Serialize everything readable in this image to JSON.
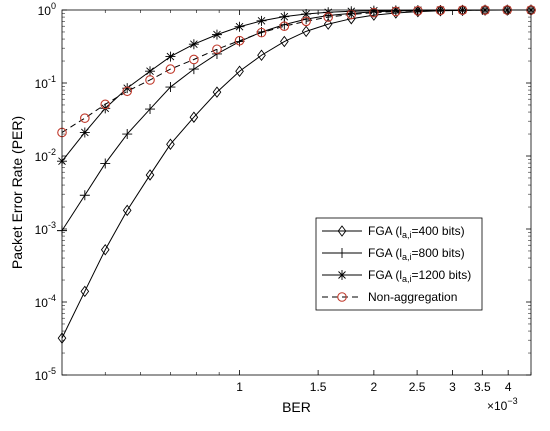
{
  "chart_data": {
    "type": "line",
    "xlabel": "BER",
    "ylabel": "Packet Error Rate (PER)",
    "x_scale": "log",
    "y_scale": "log",
    "xlim": [
      0.0004,
      0.0045
    ],
    "ylim": [
      1e-05,
      1
    ],
    "x_exponent_label": "×10",
    "x_exponent_value": "−3",
    "x_ticks": [
      0.001,
      0.0015,
      0.002,
      0.0025,
      0.003,
      0.0035,
      0.004
    ],
    "x_tick_labels": [
      "1",
      "1.5",
      "2",
      "2.5",
      "3",
      "3.5",
      "4"
    ],
    "y_ticks": [
      1e-05,
      0.0001,
      0.001,
      0.01,
      0.1,
      1
    ],
    "y_tick_labels": [
      {
        "base": "10",
        "exp": "-5"
      },
      {
        "base": "10",
        "exp": "-4"
      },
      {
        "base": "10",
        "exp": "-3"
      },
      {
        "base": "10",
        "exp": "-2"
      },
      {
        "base": "10",
        "exp": "-1"
      },
      {
        "base": "10",
        "exp": "0"
      }
    ],
    "grid": false,
    "legend_position": "lower-right",
    "series": [
      {
        "name_main": "FGA (l",
        "name_sub": "a,i",
        "name_tail": "=400 bits)",
        "marker": "diamond",
        "line": "solid",
        "color": "#000000",
        "x": [
          0.0004,
          0.00045,
          0.0005,
          0.00056,
          0.00063,
          0.0007,
          0.00079,
          0.00089,
          0.001,
          0.00112,
          0.00126,
          0.00141,
          0.00158,
          0.00178,
          0.002,
          0.00224,
          0.00251,
          0.00282,
          0.00316,
          0.00355,
          0.00398,
          0.0045
        ],
        "y": [
          3.2e-05,
          0.00014,
          0.00052,
          0.0018,
          0.0055,
          0.0145,
          0.034,
          0.075,
          0.145,
          0.24,
          0.37,
          0.51,
          0.64,
          0.76,
          0.85,
          0.91,
          0.95,
          0.975,
          0.99,
          0.995,
          0.998,
          0.999
        ]
      },
      {
        "name_main": "FGA (l",
        "name_sub": "a,i",
        "name_tail": "=800 bits)",
        "marker": "plus",
        "line": "solid",
        "color": "#000000",
        "x": [
          0.0004,
          0.00045,
          0.0005,
          0.00056,
          0.00063,
          0.0007,
          0.00079,
          0.00089,
          0.001,
          0.00112,
          0.00126,
          0.00141,
          0.00158,
          0.00178,
          0.002,
          0.00224,
          0.00251,
          0.00282,
          0.00316,
          0.00355,
          0.00398,
          0.0045
        ],
        "y": [
          0.00095,
          0.0029,
          0.0079,
          0.02,
          0.044,
          0.088,
          0.155,
          0.25,
          0.37,
          0.5,
          0.63,
          0.75,
          0.84,
          0.9,
          0.945,
          0.97,
          0.985,
          0.993,
          0.997,
          0.999,
          0.999,
          0.999
        ]
      },
      {
        "name_main": "FGA (l",
        "name_sub": "a,i",
        "name_tail": "=1200 bits)",
        "marker": "asterisk",
        "line": "solid",
        "color": "#000000",
        "x": [
          0.0004,
          0.00045,
          0.0005,
          0.00056,
          0.00063,
          0.0007,
          0.00079,
          0.00089,
          0.001,
          0.00112,
          0.00126,
          0.00141,
          0.00158,
          0.00178,
          0.002,
          0.00224,
          0.00251,
          0.00282,
          0.00316,
          0.00355,
          0.00398,
          0.0045
        ],
        "y": [
          0.0085,
          0.021,
          0.045,
          0.085,
          0.145,
          0.23,
          0.34,
          0.46,
          0.59,
          0.71,
          0.81,
          0.88,
          0.93,
          0.96,
          0.98,
          0.99,
          0.995,
          0.998,
          0.999,
          0.999,
          0.999,
          0.999
        ]
      },
      {
        "name_main": "Non-aggregation",
        "name_sub": "",
        "name_tail": "",
        "marker": "circle",
        "line": "dashed",
        "color": "#000000",
        "marker_color": "#c0392b",
        "x": [
          0.0004,
          0.00045,
          0.0005,
          0.00056,
          0.00063,
          0.0007,
          0.00079,
          0.00089,
          0.001,
          0.00112,
          0.00126,
          0.00141,
          0.00158,
          0.00178,
          0.002,
          0.00224,
          0.00251,
          0.00282,
          0.00316,
          0.00355,
          0.00398,
          0.0045
        ],
        "y": [
          0.021,
          0.033,
          0.051,
          0.077,
          0.11,
          0.155,
          0.21,
          0.29,
          0.38,
          0.49,
          0.6,
          0.7,
          0.8,
          0.87,
          0.92,
          0.955,
          0.975,
          0.988,
          0.995,
          0.998,
          0.999,
          0.999
        ]
      }
    ]
  }
}
